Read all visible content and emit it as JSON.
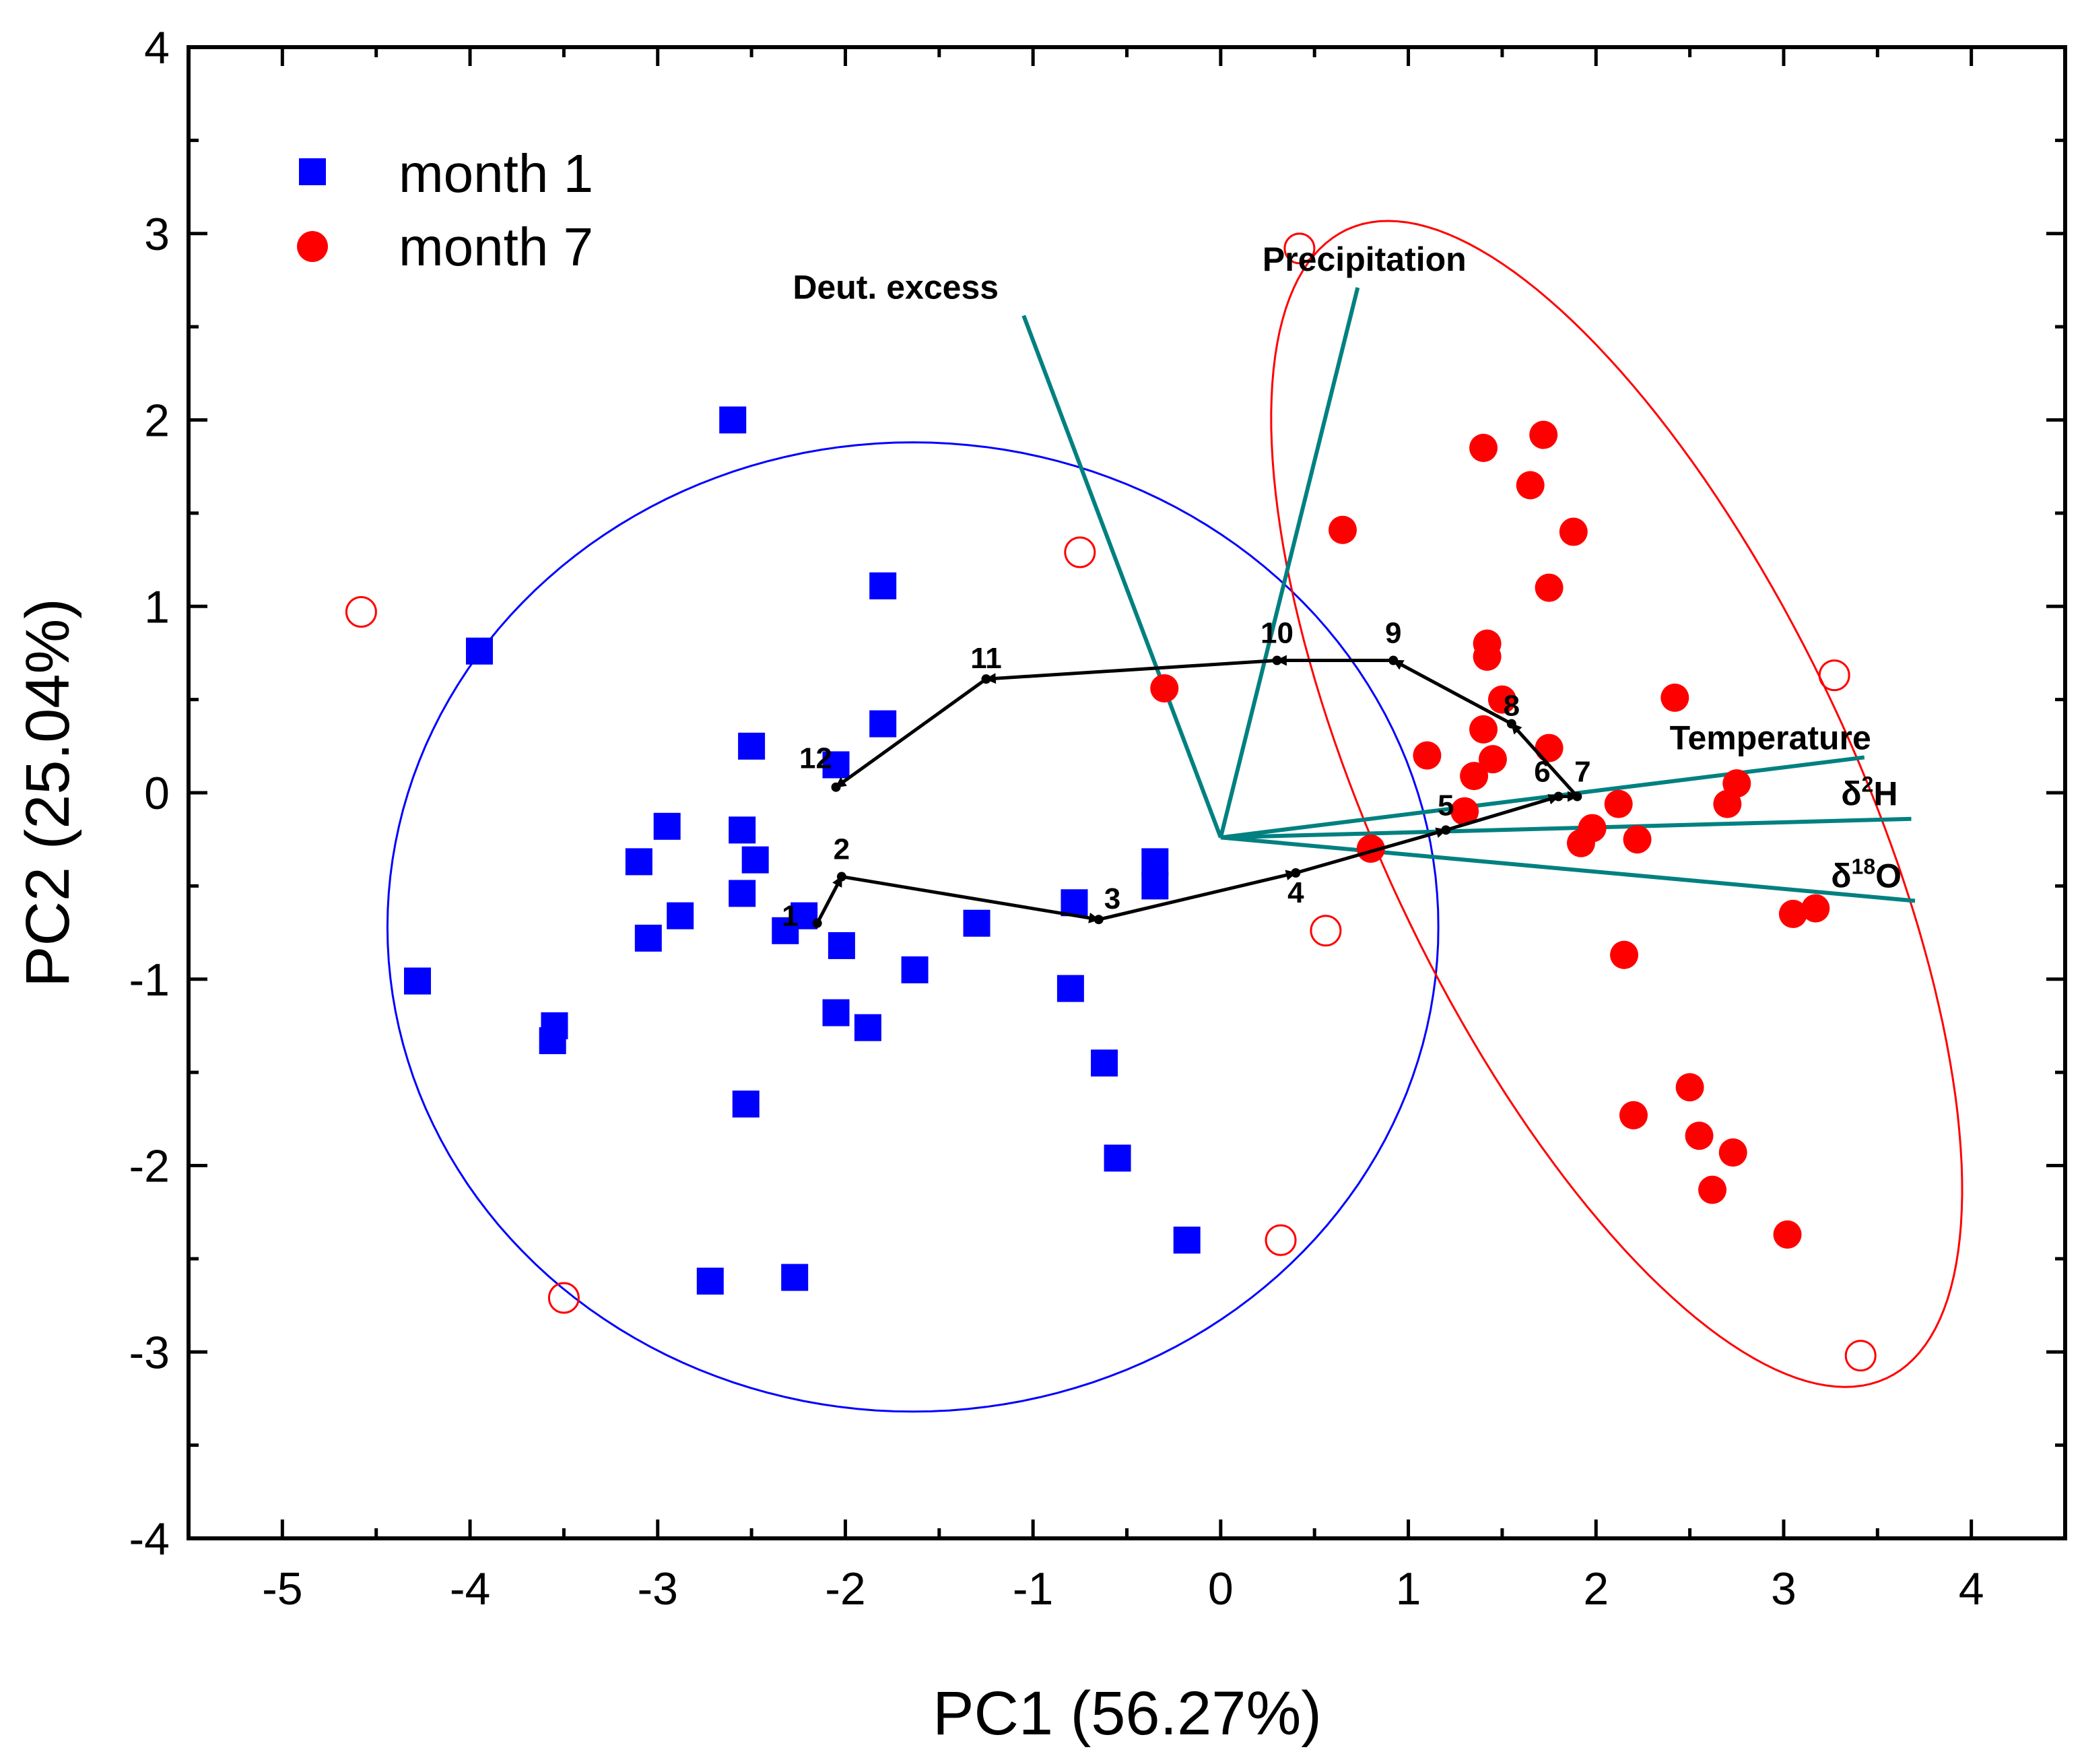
{
  "chart_data": {
    "type": "scatter",
    "xlabel": "PC1 (56.27%)",
    "ylabel": "PC2 (25.04%)",
    "xlim": [
      -5.5,
      4.5
    ],
    "ylim": [
      -4,
      4
    ],
    "xticks": [
      "-5",
      "-4",
      "-3",
      "-2",
      "-1",
      "0",
      "1",
      "2",
      "3",
      "4"
    ],
    "yticks": [
      "-4",
      "-3",
      "-2",
      "-1",
      "0",
      "1",
      "2",
      "3",
      "4"
    ],
    "grid": false,
    "legend_position": "top-left",
    "series": [
      {
        "name": "month 1",
        "marker": "square",
        "color": "#0000ff",
        "points": [
          [
            -2.6,
            2.0
          ],
          [
            -3.95,
            0.76
          ],
          [
            -1.8,
            1.11
          ],
          [
            -1.8,
            0.37
          ],
          [
            -2.5,
            0.25
          ],
          [
            -2.05,
            0.15
          ],
          [
            -2.55,
            -0.2
          ],
          [
            -2.95,
            -0.18
          ],
          [
            -3.1,
            -0.37
          ],
          [
            -2.48,
            -0.36
          ],
          [
            -2.55,
            -0.54
          ],
          [
            -2.88,
            -0.66
          ],
          [
            -3.05,
            -0.78
          ],
          [
            -2.32,
            -0.74
          ],
          [
            -2.22,
            -0.66
          ],
          [
            -2.02,
            -0.82
          ],
          [
            -1.3,
            -0.7
          ],
          [
            -1.63,
            -0.95
          ],
          [
            -2.05,
            -1.18
          ],
          [
            -1.88,
            -1.26
          ],
          [
            -0.78,
            -0.59
          ],
          [
            -0.35,
            -0.37
          ],
          [
            -0.35,
            -0.5
          ],
          [
            -0.8,
            -1.05
          ],
          [
            -0.62,
            -1.45
          ],
          [
            -0.55,
            -1.96
          ],
          [
            -0.18,
            -2.4
          ],
          [
            -4.28,
            -1.01
          ],
          [
            -3.55,
            -1.25
          ],
          [
            -3.56,
            -1.33
          ],
          [
            -2.53,
            -1.67
          ],
          [
            -2.72,
            -2.62
          ],
          [
            -2.27,
            -2.6
          ]
        ]
      },
      {
        "name": "month 7",
        "marker": "circle",
        "color": "#ff0000",
        "points": [
          [
            1.4,
            1.85
          ],
          [
            1.72,
            1.92
          ],
          [
            1.65,
            1.65
          ],
          [
            0.65,
            1.41
          ],
          [
            1.88,
            1.4
          ],
          [
            1.75,
            1.1
          ],
          [
            1.42,
            0.8
          ],
          [
            1.42,
            0.73
          ],
          [
            1.5,
            0.5
          ],
          [
            2.42,
            0.51
          ],
          [
            -0.3,
            0.56
          ],
          [
            1.4,
            0.34
          ],
          [
            1.1,
            0.2
          ],
          [
            1.45,
            0.18
          ],
          [
            1.75,
            0.24
          ],
          [
            1.35,
            0.09
          ],
          [
            2.75,
            0.05
          ],
          [
            1.3,
            -0.1
          ],
          [
            2.12,
            -0.06
          ],
          [
            2.7,
            -0.06
          ],
          [
            1.98,
            -0.19
          ],
          [
            1.92,
            -0.27
          ],
          [
            2.22,
            -0.25
          ],
          [
            0.8,
            -0.3
          ],
          [
            3.05,
            -0.65
          ],
          [
            3.17,
            -0.62
          ],
          [
            2.15,
            -0.87
          ],
          [
            2.2,
            -1.73
          ],
          [
            2.5,
            -1.58
          ],
          [
            2.55,
            -1.84
          ],
          [
            2.62,
            -2.13
          ],
          [
            2.73,
            -1.93
          ],
          [
            3.02,
            -2.37
          ]
        ]
      }
    ],
    "confidence_ellipses": [
      {
        "series": "month 1",
        "color": "#0000ff",
        "center": [
          -1.64,
          -0.72
        ],
        "semi_axes": [
          2.8,
          2.6
        ],
        "rotation_deg": 0,
        "markers": [
          [
            -4.58,
            0.97
          ],
          [
            -0.75,
            1.29
          ],
          [
            0.56,
            -0.74
          ],
          [
            0.32,
            -2.4
          ],
          [
            -3.5,
            -2.71
          ]
        ]
      },
      {
        "series": "month 7",
        "color": "#ff0000",
        "center": [
          2.11,
          -0.06
        ],
        "semi_axes": [
          3.4,
          1.27
        ],
        "rotation_deg": -65,
        "markers": [
          [
            0.42,
            2.92
          ],
          [
            3.27,
            0.63
          ],
          [
            3.41,
            -3.02
          ]
        ]
      }
    ],
    "loadings": {
      "color": "#008080",
      "origin": [
        0,
        -0.24
      ],
      "vectors": [
        {
          "label": "Deut. excess",
          "end": [
            -1.05,
            2.56
          ]
        },
        {
          "label": "Precipitation",
          "end": [
            0.73,
            2.71
          ]
        },
        {
          "label": "Temperature",
          "end": [
            3.43,
            0.19
          ]
        },
        {
          "label": "δ2H",
          "end": [
            3.68,
            -0.14
          ]
        },
        {
          "label": "δ18O",
          "end": [
            3.7,
            -0.58
          ]
        }
      ]
    },
    "monthly_path": {
      "color": "#000000",
      "points": [
        {
          "label": "1",
          "x": -2.15,
          "y": -0.7
        },
        {
          "label": "2",
          "x": -2.02,
          "y": -0.45
        },
        {
          "label": "3",
          "x": -0.65,
          "y": -0.68
        },
        {
          "label": "4",
          "x": 0.4,
          "y": -0.43
        },
        {
          "label": "5",
          "x": 1.2,
          "y": -0.2
        },
        {
          "label": "6",
          "x": 1.8,
          "y": -0.02
        },
        {
          "label": "7",
          "x": 1.9,
          "y": -0.02
        },
        {
          "label": "8",
          "x": 1.55,
          "y": 0.37
        },
        {
          "label": "9",
          "x": 0.92,
          "y": 0.71
        },
        {
          "label": "10",
          "x": 0.3,
          "y": 0.71
        },
        {
          "label": "11",
          "x": -1.25,
          "y": 0.61
        },
        {
          "label": "12",
          "x": -2.05,
          "y": 0.03
        }
      ]
    }
  }
}
